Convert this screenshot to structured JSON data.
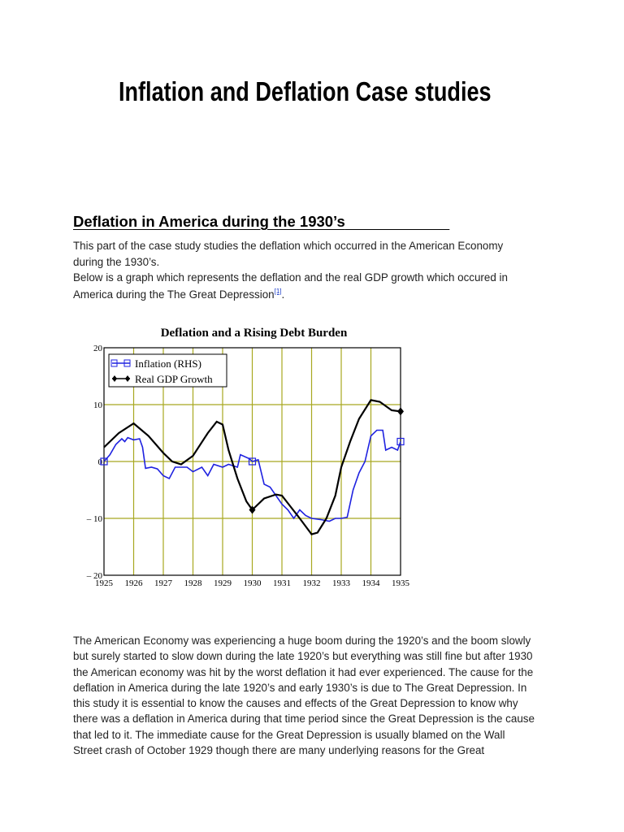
{
  "document": {
    "title": "Inflation and Deflation Case studies",
    "section_heading": "Deflation in America during the 1930’s",
    "intro_lines": [
      "This part of the case study studies the deflation which occurred in the American Economy",
      "during the 1930’s.",
      "Below is a graph which represents the deflation and the real GDP growth which occured in",
      "America during the The Great Depression"
    ],
    "footnote_ref": "[1]",
    "body_lines": [
      "The American Economy was experiencing a huge boom during the 1920’s and the boom slowly",
      "but surely started to slow down during the late 1920’s but everything was still fine but after 1930",
      "the American economy was hit by the worst deflation it had ever experienced. The cause for the",
      "deflation in America during the late 1920’s and early 1930’s is due to The Great Depression. In",
      "this study it is essential to know the causes and effects of the Great Depression to know why",
      "there was a deflation in America during that time period since the Great Depression is the cause",
      "that led to it. The immediate cause for the Great Depression is usually blamed on the Wall",
      "Street crash of October 1929 though there are many underlying reasons for the Great"
    ]
  },
  "chart_data": {
    "type": "line",
    "title": "Deflation and a Rising Debt Burden",
    "xlim": [
      1925,
      1935
    ],
    "ylim": [
      -20,
      20
    ],
    "x_ticks": [
      "1925",
      "1926",
      "1927",
      "1928",
      "1929",
      "1930",
      "1931",
      "1932",
      "1933",
      "1934",
      "1935"
    ],
    "y_ticks": [
      {
        "v": 20,
        "label": "20"
      },
      {
        "v": 10,
        "label": "10"
      },
      {
        "v": 0,
        "label": "0"
      },
      {
        "v": -10,
        "label": "– 10"
      },
      {
        "v": -20,
        "label": "– 20"
      }
    ],
    "grid": true,
    "grid_color": "#a8a820",
    "legend_position": "top-left",
    "series": [
      {
        "name": "Inflation (RHS)",
        "color": "#1f22e0",
        "marker": "square",
        "x": [
          1925,
          1925.2,
          1925.4,
          1925.6,
          1925.7,
          1925.8,
          1926,
          1926.2,
          1926.3,
          1926.4,
          1926.6,
          1926.8,
          1927,
          1927.2,
          1927.4,
          1927.8,
          1928,
          1928.3,
          1928.5,
          1928.7,
          1929,
          1929.2,
          1929.5,
          1929.6,
          1929.9,
          1930,
          1930.2,
          1930.4,
          1930.6,
          1930.8,
          1931,
          1931.2,
          1931.4,
          1931.6,
          1931.8,
          1932,
          1932.3,
          1932.6,
          1932.8,
          1933,
          1933.2,
          1933.4,
          1933.6,
          1933.8,
          1934,
          1934.2,
          1934.4,
          1934.5,
          1934.7,
          1934.9,
          1935
        ],
        "y": [
          0,
          1.2,
          3,
          4,
          3.5,
          4.2,
          3.8,
          4,
          2.5,
          -1.2,
          -1,
          -1.3,
          -2.5,
          -3,
          -1,
          -1,
          -1.8,
          -1,
          -2.5,
          -0.5,
          -1,
          -0.5,
          -1,
          1.2,
          0.5,
          0,
          0.3,
          -4,
          -4.5,
          -6,
          -7.5,
          -8.5,
          -10,
          -8.5,
          -9.5,
          -10,
          -10.2,
          -10.5,
          -10,
          -10,
          -9.8,
          -5,
          -2,
          0,
          4.5,
          5.5,
          5.5,
          2,
          2.5,
          2,
          3.5
        ],
        "markers_at": [
          1925,
          1930,
          1935
        ]
      },
      {
        "name": "Real GDP Growth",
        "color": "#000000",
        "marker": "diamond",
        "x": [
          1925,
          1925.5,
          1926,
          1926.5,
          1927,
          1927.3,
          1927.6,
          1928,
          1928.5,
          1928.8,
          1929,
          1929.2,
          1929.5,
          1929.8,
          1930,
          1930.4,
          1930.8,
          1931,
          1931.3,
          1931.6,
          1932,
          1932.2,
          1932.5,
          1932.8,
          1933,
          1933.3,
          1933.6,
          1934,
          1934.3,
          1934.7,
          1935
        ],
        "y": [
          2.5,
          5,
          6.7,
          4.5,
          1.5,
          0,
          -0.5,
          1,
          5,
          7,
          6.5,
          2,
          -3,
          -7,
          -8.5,
          -6.5,
          -5.8,
          -6,
          -8,
          -10,
          -12.8,
          -12.5,
          -10,
          -6,
          -1,
          3.5,
          7.5,
          10.8,
          10.5,
          9,
          8.8
        ],
        "markers_at": [
          1930,
          1935
        ]
      }
    ]
  }
}
